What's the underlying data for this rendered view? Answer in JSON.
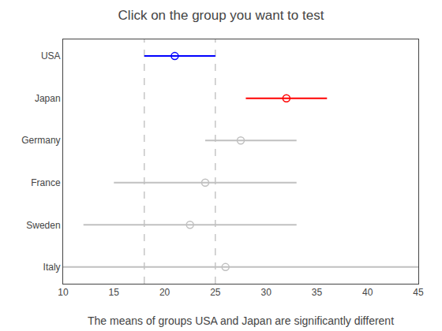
{
  "chart_data": {
    "type": "interval",
    "title": "Click on the group you want to test",
    "xlabel": "The means of groups USA and Japan are significantly different",
    "categories": [
      "USA",
      "Japan",
      "Germany",
      "France",
      "Sweden",
      "Italy"
    ],
    "values": [
      21.0,
      32.0,
      27.5,
      24.0,
      22.5,
      26.0
    ],
    "ci_low": [
      18.0,
      28.0,
      24.0,
      15.0,
      12.0,
      10.0
    ],
    "ci_high": [
      25.0,
      36.0,
      33.0,
      33.0,
      33.0,
      45.0
    ],
    "colors": [
      "blue",
      "red",
      "#c0c0c0",
      "#c0c0c0",
      "#c0c0c0",
      "#c0c0c0"
    ],
    "reference_lines": [
      18.0,
      25.0
    ],
    "marker": "circle-open",
    "xlim": [
      10,
      45
    ],
    "xticks": [
      10,
      15,
      20,
      25,
      30,
      35,
      40,
      45
    ],
    "grid": false
  }
}
